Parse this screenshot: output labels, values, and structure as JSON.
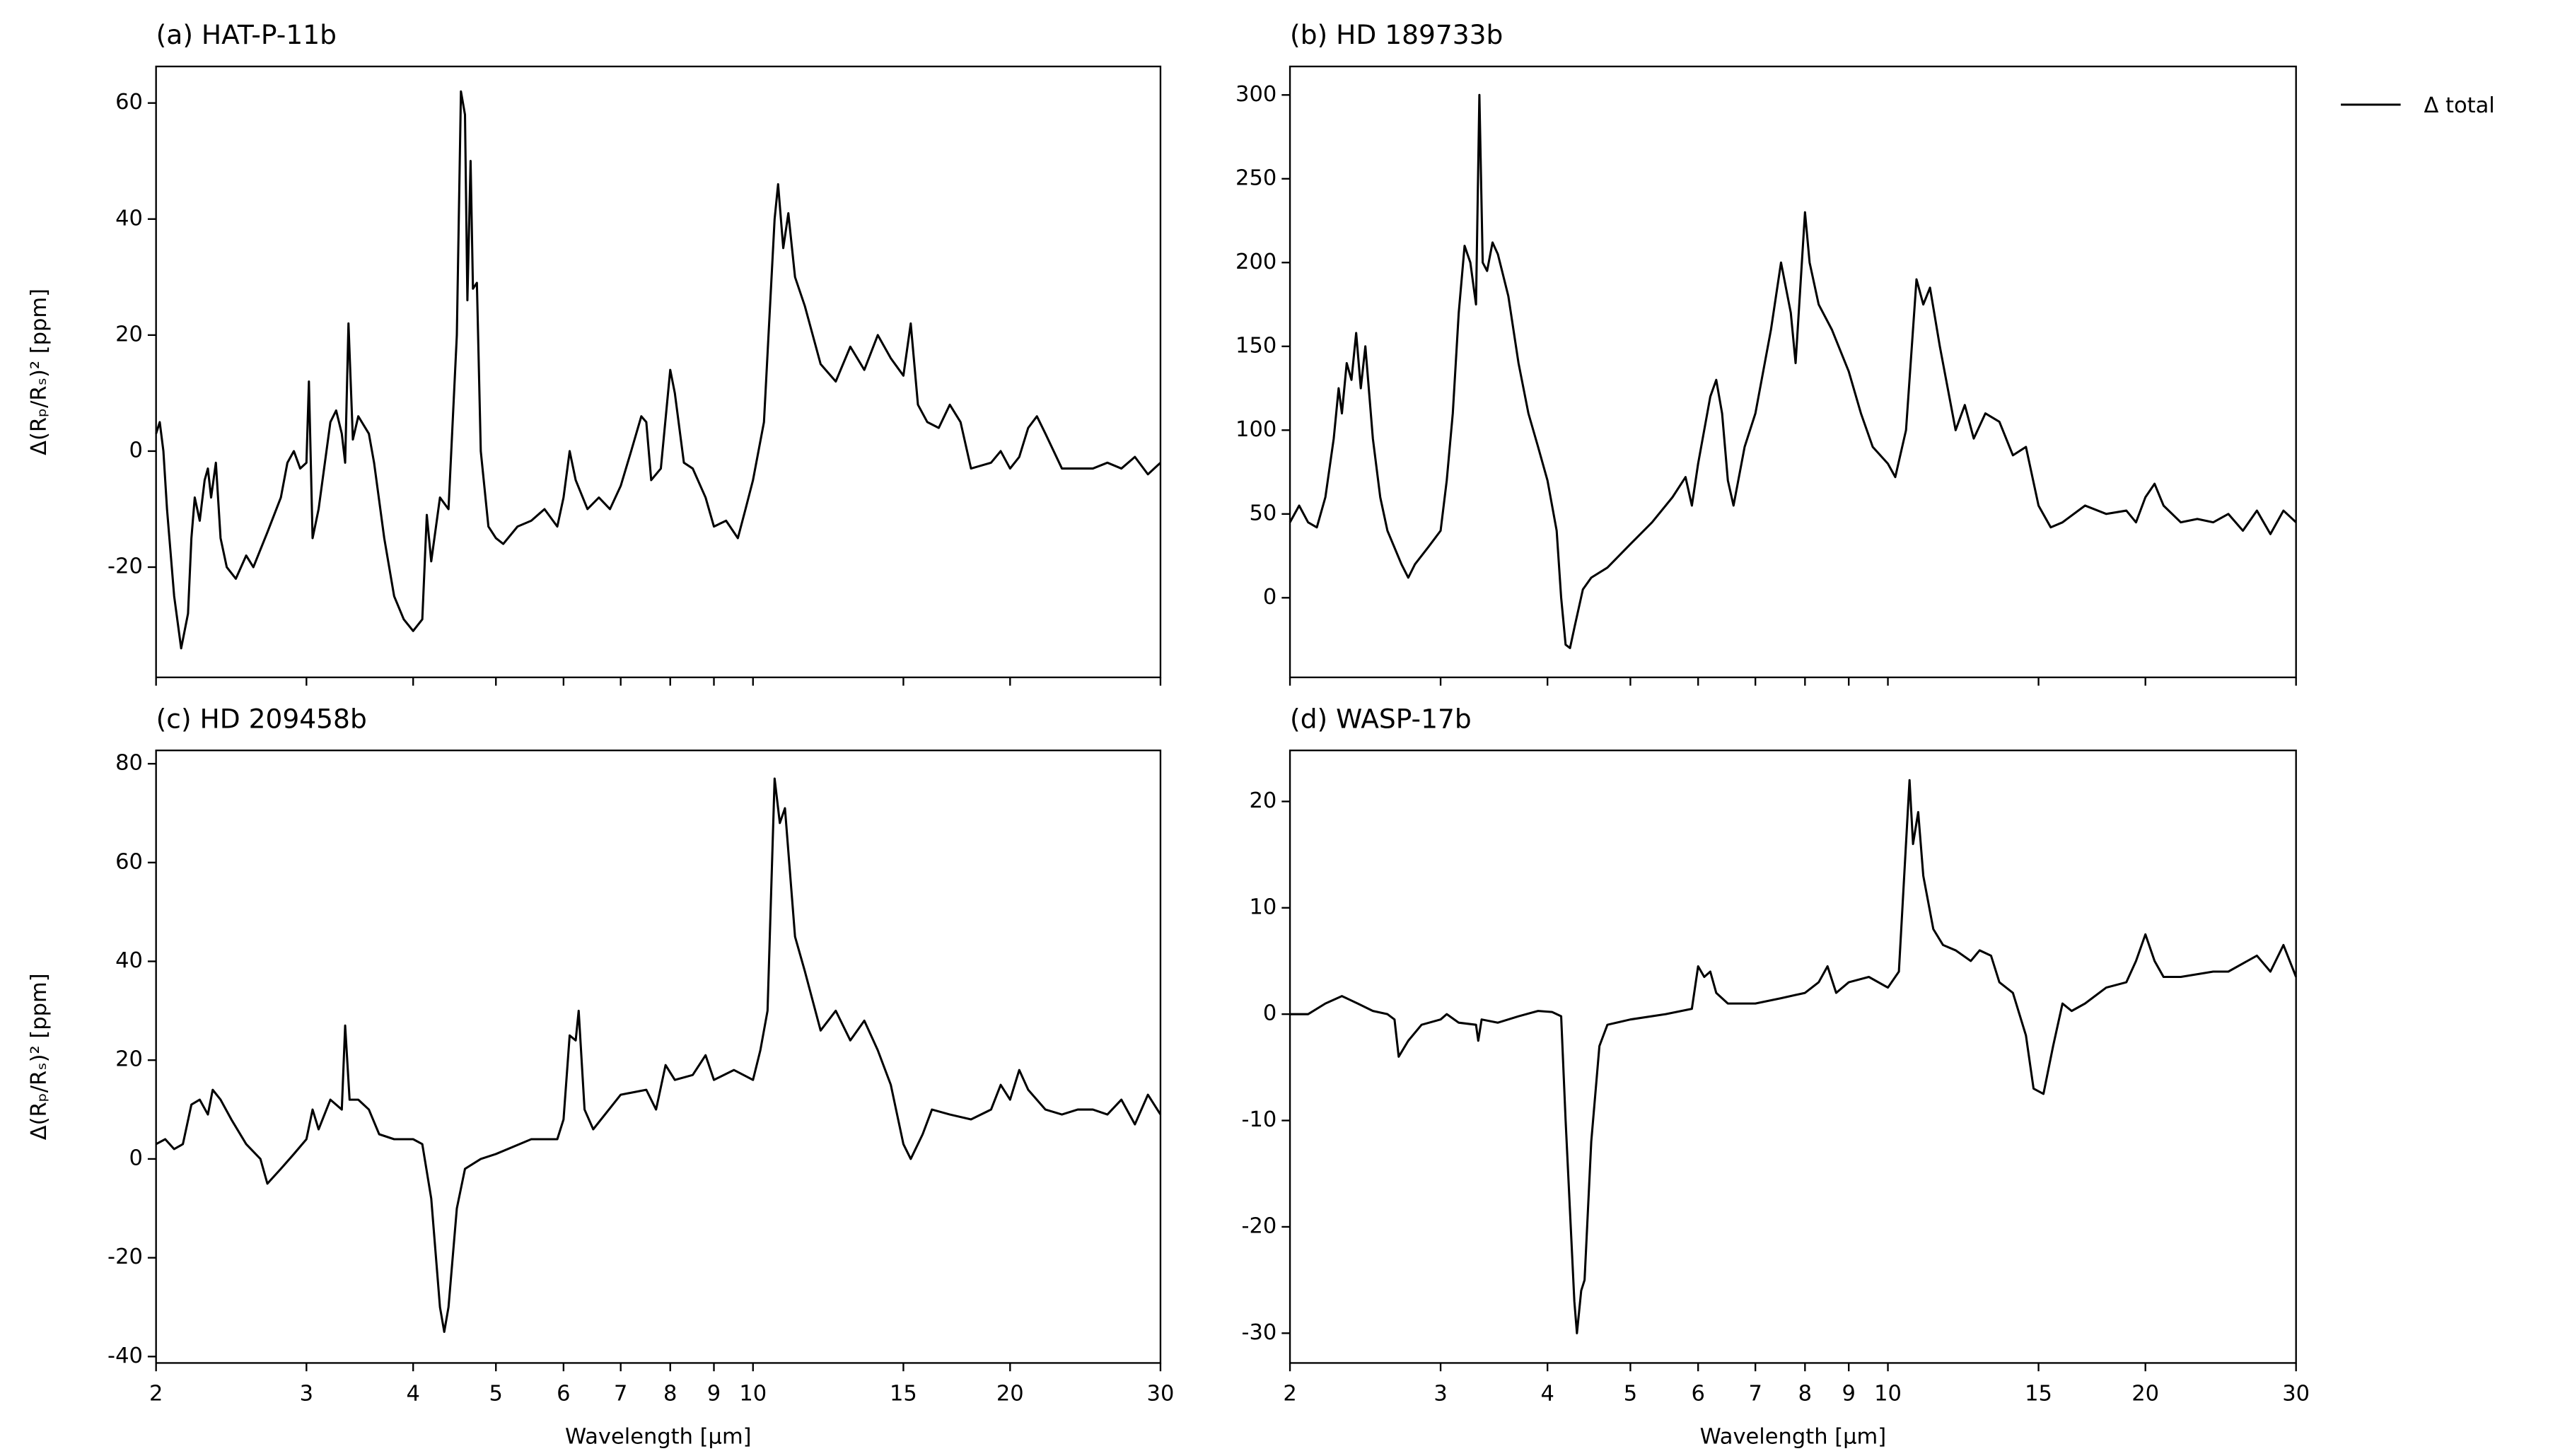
{
  "chart_data": [
    {
      "type": "line",
      "title": "(a) HAT-P-11b",
      "ylabel": "Δ(Rₚ/Rₛ)² [ppm]",
      "xscale": "log",
      "xlim": [
        2,
        30
      ],
      "xticks": [
        2,
        3,
        4,
        5,
        6,
        7,
        8,
        9,
        10,
        15,
        20,
        30
      ],
      "xtick_labels": false,
      "ylim": [
        -39,
        66.3
      ],
      "yticks": [
        -20,
        0,
        20,
        40,
        60
      ],
      "x": [
        2.0,
        2.02,
        2.04,
        2.06,
        2.1,
        2.14,
        2.18,
        2.2,
        2.22,
        2.25,
        2.28,
        2.3,
        2.32,
        2.35,
        2.38,
        2.42,
        2.48,
        2.55,
        2.6,
        2.7,
        2.8,
        2.85,
        2.9,
        2.95,
        3.0,
        3.02,
        3.05,
        3.1,
        3.2,
        3.25,
        3.3,
        3.33,
        3.36,
        3.4,
        3.45,
        3.55,
        3.6,
        3.7,
        3.8,
        3.9,
        4.0,
        4.1,
        4.15,
        4.2,
        4.3,
        4.4,
        4.5,
        4.55,
        4.6,
        4.63,
        4.67,
        4.7,
        4.75,
        4.8,
        4.9,
        5.0,
        5.1,
        5.3,
        5.5,
        5.7,
        5.9,
        6.0,
        6.1,
        6.2,
        6.4,
        6.6,
        6.8,
        7.0,
        7.2,
        7.4,
        7.5,
        7.6,
        7.8,
        8.0,
        8.1,
        8.3,
        8.5,
        8.8,
        9.0,
        9.3,
        9.6,
        9.8,
        10.0,
        10.3,
        10.6,
        10.7,
        10.85,
        11.0,
        11.2,
        11.5,
        12.0,
        12.5,
        13.0,
        13.5,
        14.0,
        14.5,
        15.0,
        15.3,
        15.6,
        16,
        16.5,
        17,
        17.5,
        18,
        19,
        19.5,
        20,
        20.5,
        21,
        21.5,
        22,
        23,
        25,
        26,
        27,
        28,
        29,
        30
      ],
      "series": [
        {
          "color": "#000000",
          "values": [
            3,
            5,
            0,
            -10,
            -25,
            -34,
            -28,
            -15,
            -8,
            -12,
            -5,
            -3,
            -8,
            -2,
            -15,
            -20,
            -22,
            -18,
            -20,
            -14,
            -8,
            -2,
            0,
            -3,
            -2,
            12,
            -15,
            -10,
            5,
            7,
            3,
            -2,
            22,
            2,
            6,
            3,
            -2,
            -15,
            -25,
            -29,
            -31,
            -29,
            -11,
            -19,
            -8,
            -10,
            20,
            62,
            58,
            26,
            50,
            28,
            29,
            0,
            -13,
            -15,
            -16,
            -13,
            -12,
            -10,
            -13,
            -8,
            0,
            -5,
            -10,
            -8,
            -10,
            -6,
            0,
            6,
            5,
            -5,
            -3,
            14,
            10,
            -2,
            -3,
            -8,
            -13,
            -12,
            -15,
            -10,
            -5,
            5,
            40,
            46,
            35,
            41,
            30,
            25,
            15,
            12,
            18,
            14,
            20,
            16,
            13,
            22,
            8,
            5,
            4,
            8,
            5,
            -3,
            -2,
            0,
            -3,
            -1,
            4,
            6,
            3,
            -3,
            -3,
            -2,
            -3,
            -1,
            -4,
            -2
          ]
        }
      ]
    },
    {
      "type": "line",
      "title": "(b) HD 189733b",
      "xscale": "log",
      "xlim": [
        2,
        30
      ],
      "xticks": [
        2,
        3,
        4,
        5,
        6,
        7,
        8,
        9,
        10,
        15,
        20,
        30
      ],
      "xtick_labels": false,
      "ylim": [
        -47.5,
        317
      ],
      "yticks": [
        0,
        50,
        100,
        150,
        200,
        250,
        300
      ],
      "x": [
        2.0,
        2.05,
        2.1,
        2.15,
        2.2,
        2.25,
        2.28,
        2.3,
        2.33,
        2.36,
        2.39,
        2.42,
        2.45,
        2.5,
        2.55,
        2.6,
        2.7,
        2.75,
        2.8,
        2.9,
        3.0,
        3.05,
        3.1,
        3.15,
        3.2,
        3.25,
        3.3,
        3.33,
        3.36,
        3.4,
        3.45,
        3.5,
        3.6,
        3.7,
        3.8,
        3.9,
        4.0,
        4.1,
        4.15,
        4.2,
        4.25,
        4.3,
        4.4,
        4.5,
        4.7,
        5.0,
        5.3,
        5.6,
        5.8,
        5.9,
        6.0,
        6.2,
        6.3,
        6.4,
        6.5,
        6.6,
        6.8,
        7.0,
        7.3,
        7.5,
        7.7,
        7.8,
        8.0,
        8.1,
        8.3,
        8.6,
        9.0,
        9.3,
        9.6,
        10.0,
        10.2,
        10.5,
        10.8,
        11.0,
        11.2,
        11.5,
        12.0,
        12.3,
        12.6,
        13.0,
        13.5,
        14.0,
        14.5,
        15,
        15.5,
        16,
        17,
        18,
        19,
        19.5,
        20,
        20.5,
        21,
        22,
        23,
        24,
        25,
        26,
        27,
        28,
        29,
        30
      ],
      "series": [
        {
          "name": "Δ total",
          "color": "#000000",
          "values": [
            45,
            55,
            45,
            42,
            60,
            95,
            125,
            110,
            140,
            130,
            158,
            125,
            150,
            95,
            60,
            40,
            20,
            12,
            20,
            30,
            40,
            70,
            110,
            170,
            210,
            200,
            175,
            300,
            200,
            195,
            212,
            205,
            180,
            140,
            110,
            90,
            70,
            40,
            0,
            -28,
            -30,
            -18,
            5,
            12,
            18,
            32,
            45,
            60,
            72,
            55,
            80,
            120,
            130,
            110,
            70,
            55,
            90,
            110,
            160,
            200,
            170,
            140,
            230,
            200,
            175,
            160,
            135,
            110,
            90,
            80,
            72,
            100,
            190,
            175,
            185,
            150,
            100,
            115,
            95,
            110,
            105,
            85,
            90,
            55,
            42,
            45,
            55,
            50,
            52,
            45,
            60,
            68,
            55,
            45,
            47,
            45,
            50,
            40,
            52,
            38,
            52,
            45
          ]
        }
      ]
    },
    {
      "type": "line",
      "title": "(c) HD 209458b",
      "ylabel": "Δ(Rₚ/Rₛ)² [ppm]",
      "xlabel": "Wavelength [μm]",
      "xscale": "log",
      "xlim": [
        2,
        30
      ],
      "xticks": [
        2,
        3,
        4,
        5,
        6,
        7,
        8,
        9,
        10,
        15,
        20,
        30
      ],
      "xtick_labels": true,
      "ylim": [
        -41.3,
        82.7
      ],
      "yticks": [
        -40,
        -20,
        0,
        20,
        40,
        60,
        80
      ],
      "x": [
        2.0,
        2.05,
        2.1,
        2.15,
        2.2,
        2.25,
        2.3,
        2.33,
        2.38,
        2.45,
        2.55,
        2.65,
        2.7,
        2.8,
        2.9,
        3.0,
        3.05,
        3.1,
        3.2,
        3.3,
        3.33,
        3.37,
        3.45,
        3.55,
        3.65,
        3.8,
        4.0,
        4.1,
        4.2,
        4.3,
        4.35,
        4.4,
        4.5,
        4.6,
        4.8,
        5.0,
        5.5,
        5.9,
        6.0,
        6.1,
        6.2,
        6.25,
        6.35,
        6.5,
        7.0,
        7.5,
        7.7,
        7.9,
        8.1,
        8.5,
        8.8,
        9.0,
        9.5,
        10.0,
        10.2,
        10.4,
        10.6,
        10.75,
        10.9,
        11.2,
        11.5,
        12.0,
        12.5,
        13.0,
        13.5,
        14.0,
        14.5,
        15.0,
        15.3,
        15.8,
        16.2,
        17,
        18,
        19,
        19.5,
        20,
        20.5,
        21,
        22,
        23,
        24,
        25,
        26,
        27,
        28,
        29,
        30
      ],
      "series": [
        {
          "color": "#000000",
          "values": [
            3,
            4,
            2,
            3,
            11,
            12,
            9,
            14,
            12,
            8,
            3,
            0,
            -5,
            -2,
            1,
            4,
            10,
            6,
            12,
            10,
            27,
            12,
            12,
            10,
            5,
            4,
            4,
            3,
            -8,
            -30,
            -35,
            -30,
            -10,
            -2,
            0,
            1,
            4,
            4,
            8,
            25,
            24,
            30,
            10,
            6,
            13,
            14,
            10,
            19,
            16,
            17,
            21,
            16,
            18,
            16,
            22,
            30,
            77,
            68,
            71,
            45,
            38,
            26,
            30,
            24,
            28,
            22,
            15,
            3,
            0,
            5,
            10,
            9,
            8,
            10,
            15,
            12,
            18,
            14,
            10,
            9,
            10,
            10,
            9,
            12,
            7,
            13,
            9
          ]
        }
      ]
    },
    {
      "type": "line",
      "title": "(d) WASP-17b",
      "xlabel": "Wavelength [μm]",
      "xscale": "log",
      "xlim": [
        2,
        30
      ],
      "xticks": [
        2,
        3,
        4,
        5,
        6,
        7,
        8,
        9,
        10,
        15,
        20,
        30
      ],
      "xtick_labels": true,
      "ylim": [
        -32.8,
        24.8
      ],
      "yticks": [
        -30,
        -20,
        -10,
        0,
        10,
        20
      ],
      "x": [
        2.0,
        2.1,
        2.2,
        2.3,
        2.4,
        2.5,
        2.6,
        2.65,
        2.68,
        2.75,
        2.85,
        3.0,
        3.05,
        3.15,
        3.3,
        3.32,
        3.35,
        3.5,
        3.7,
        3.9,
        4.05,
        4.15,
        4.2,
        4.3,
        4.33,
        4.38,
        4.42,
        4.5,
        4.6,
        4.7,
        5.0,
        5.5,
        5.9,
        6.0,
        6.1,
        6.2,
        6.3,
        6.5,
        7,
        7.5,
        8,
        8.3,
        8.5,
        8.7,
        9,
        9.5,
        10,
        10.3,
        10.6,
        10.7,
        10.85,
        11,
        11.3,
        11.6,
        12,
        12.5,
        12.8,
        13.2,
        13.5,
        14,
        14.5,
        14.8,
        15.2,
        15.6,
        16,
        16.4,
        17,
        18,
        19,
        19.5,
        20,
        20.5,
        21,
        22,
        24,
        25,
        27,
        28,
        29,
        30
      ],
      "series": [
        {
          "color": "#000000",
          "values": [
            0,
            0,
            1,
            1.7,
            1,
            0.3,
            0,
            -0.5,
            -4,
            -2.5,
            -1,
            -0.5,
            0,
            -0.8,
            -1,
            -2.5,
            -0.5,
            -0.8,
            -0.2,
            0.3,
            0.2,
            -0.2,
            -10,
            -27,
            -30,
            -26,
            -25,
            -12,
            -3,
            -1,
            -0.5,
            0,
            0.5,
            4.5,
            3.5,
            4,
            2,
            1,
            1,
            1.5,
            2,
            3,
            4.5,
            2,
            3,
            3.5,
            2.5,
            4,
            22,
            16,
            19,
            13,
            8,
            6.5,
            6,
            5,
            6,
            5.5,
            3,
            2,
            -2,
            -7,
            -7.5,
            -3,
            1,
            0.3,
            1,
            2.5,
            3,
            5,
            7.5,
            5,
            3.5,
            3.5,
            4,
            4,
            5.5,
            4,
            6.5,
            3.5
          ]
        }
      ]
    }
  ]
}
